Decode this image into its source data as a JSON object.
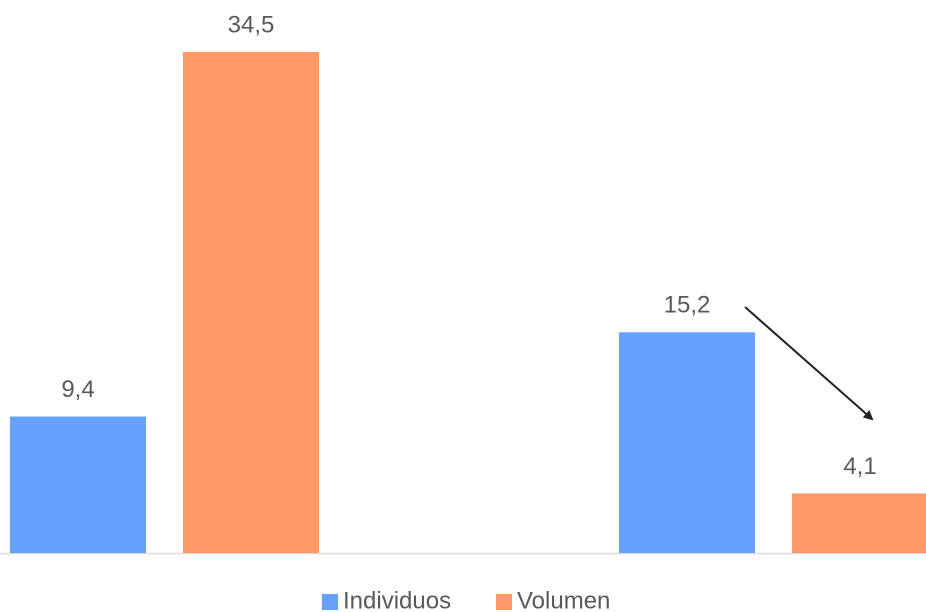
{
  "chart_data": {
    "type": "bar",
    "categories": [
      null,
      null
    ],
    "series": [
      {
        "name": "Individuos",
        "color": "#66a1ff",
        "values": [
          9.4,
          15.2
        ],
        "value_labels": [
          "9,4",
          "15,2"
        ]
      },
      {
        "name": "Volumen",
        "color": "#ff9966",
        "values": [
          34.5,
          4.1
        ],
        "value_labels": [
          "34,5",
          "4,1"
        ]
      }
    ],
    "legend": "bottom"
  }
}
